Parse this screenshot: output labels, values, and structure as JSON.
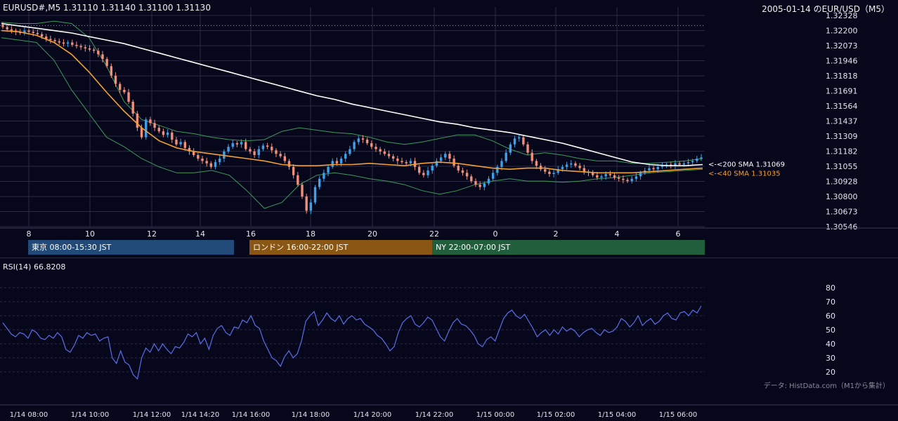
{
  "header": {
    "left_title": "EURUSD#,M5 1.31110 1.31140 1.31100 1.31130",
    "right_title": "2005-01-14 のEUR/USD（M5）"
  },
  "rsi_label": "RSI(14) 66.8208",
  "credit": "データ: HistData.com（M1から集計）",
  "sessions": [
    {
      "label": "東京 08:00-15:30 JST",
      "color": "#214a78"
    },
    {
      "label": "ロンドン 16:00-22:00 JST",
      "color": "#8a5614"
    },
    {
      "label": "NY 22:00-07:00 JST",
      "color": "#215e3c"
    }
  ],
  "colors": {
    "background": "#07071c",
    "grid": "#2a2a44",
    "bull": "#3fa0e8",
    "bear": "#f0907a",
    "sma200": "#ffffff",
    "sma40": "#f2a033",
    "bollinger": "#3c9a5a",
    "rsi": "#5a6ee8"
  },
  "chart_data": [
    {
      "type": "candlestick",
      "ylim": [
        1.30546,
        1.32328
      ],
      "y_ticks": [
        "1.32328",
        "1.32200",
        "1.32073",
        "1.31946",
        "1.31818",
        "1.31691",
        "1.31564",
        "1.31437",
        "1.31309",
        "1.31182",
        "1.31055",
        "1.30928",
        "1.30800",
        "1.30673",
        "1.30546"
      ],
      "x_ticks_hour": [
        "8",
        "10",
        "12",
        "14",
        "16",
        "18",
        "20",
        "22",
        "0",
        "2",
        "4",
        "6"
      ],
      "x_ticks_datetime": [
        "1/14 08:00",
        "1/14 10:00",
        "1/14 12:00",
        "1/14 14:20",
        "1/14 16:00",
        "1/14 18:00",
        "1/14 20:00",
        "1/14 22:00",
        "1/15 00:00",
        "1/15 02:00",
        "1/15 04:00",
        "1/15 06:00"
      ],
      "dotted_level": 1.32243,
      "sma_labels": [
        {
          "text": "<-<200 SMA 1.31069",
          "value": 1.31069,
          "color": "#ffffff"
        },
        {
          "text": "<-<40 SMA 1.31035",
          "value": 1.31035,
          "color": "#f2a033"
        }
      ],
      "close_series": [
        1.3223,
        1.3221,
        1.322,
        1.3219,
        1.3218,
        1.322,
        1.3219,
        1.3218,
        1.3217,
        1.3215,
        1.3213,
        1.3212,
        1.3211,
        1.321,
        1.3209,
        1.321,
        1.3208,
        1.3207,
        1.3206,
        1.3205,
        1.3204,
        1.3203,
        1.32,
        1.3196,
        1.319,
        1.3182,
        1.3175,
        1.317,
        1.3168,
        1.316,
        1.315,
        1.3138,
        1.313,
        1.3145,
        1.3142,
        1.3138,
        1.3135,
        1.3132,
        1.3134,
        1.3128,
        1.3124,
        1.3126,
        1.3121,
        1.3118,
        1.3115,
        1.3112,
        1.311,
        1.3108,
        1.3105,
        1.3109,
        1.3112,
        1.3118,
        1.3122,
        1.3125,
        1.3124,
        1.3126,
        1.312,
        1.3118,
        1.3115,
        1.312,
        1.3123,
        1.3122,
        1.3119,
        1.3116,
        1.3114,
        1.311,
        1.3105,
        1.3098,
        1.309,
        1.308,
        1.3068,
        1.3075,
        1.3088,
        1.3095,
        1.31,
        1.3105,
        1.311,
        1.3108,
        1.3112,
        1.3116,
        1.312,
        1.3126,
        1.3129,
        1.3128,
        1.3125,
        1.3122,
        1.312,
        1.3118,
        1.3116,
        1.3114,
        1.3112,
        1.311,
        1.3109,
        1.3108,
        1.311,
        1.3105,
        1.31,
        1.3098,
        1.3102,
        1.3106,
        1.311,
        1.3113,
        1.3116,
        1.3112,
        1.3106,
        1.3102,
        1.31,
        1.3097,
        1.3093,
        1.309,
        1.3088,
        1.3091,
        1.3095,
        1.31,
        1.3105,
        1.311,
        1.3117,
        1.3124,
        1.3129,
        1.313,
        1.3124,
        1.3117,
        1.311,
        1.3106,
        1.3103,
        1.3101,
        1.3099,
        1.31,
        1.3103,
        1.3105,
        1.3107,
        1.3108,
        1.3106,
        1.3104,
        1.3101,
        1.31,
        1.3098,
        1.3096,
        1.3097,
        1.3099,
        1.3098,
        1.3096,
        1.3095,
        1.3094,
        1.3093,
        1.3095,
        1.3097,
        1.31,
        1.3102,
        1.3104,
        1.3103,
        1.3105,
        1.3106,
        1.3107,
        1.3106,
        1.3108,
        1.3107,
        1.3108,
        1.3109,
        1.311,
        1.3112,
        1.3113
      ],
      "sma200_series": [
        1.3226,
        1.3224,
        1.3222,
        1.322,
        1.3218,
        1.3215,
        1.3212,
        1.3209,
        1.3205,
        1.3201,
        1.3197,
        1.3193,
        1.3189,
        1.3185,
        1.3181,
        1.3177,
        1.3173,
        1.3169,
        1.3165,
        1.3162,
        1.3158,
        1.3155,
        1.3152,
        1.3149,
        1.3146,
        1.3143,
        1.3141,
        1.3138,
        1.3136,
        1.3134,
        1.3131,
        1.3128,
        1.3125,
        1.3121,
        1.3117,
        1.3113,
        1.3109,
        1.3107,
        1.3106,
        1.3106,
        1.3107
      ],
      "sma40_series": [
        1.322,
        1.3219,
        1.3216,
        1.321,
        1.32,
        1.3185,
        1.3168,
        1.3152,
        1.3138,
        1.3127,
        1.3121,
        1.3118,
        1.3116,
        1.3114,
        1.3112,
        1.311,
        1.3107,
        1.3106,
        1.3106,
        1.3107,
        1.3107,
        1.3108,
        1.3107,
        1.3106,
        1.3108,
        1.3109,
        1.3108,
        1.3106,
        1.3104,
        1.3103,
        1.3104,
        1.3104,
        1.3102,
        1.3101,
        1.31,
        1.31,
        1.31,
        1.3101,
        1.3102,
        1.3103,
        1.3104
      ],
      "bollinger_upper": [
        1.3227,
        1.3226,
        1.3226,
        1.3228,
        1.3226,
        1.3214,
        1.319,
        1.316,
        1.3145,
        1.314,
        1.3135,
        1.3133,
        1.313,
        1.3128,
        1.3127,
        1.3128,
        1.3135,
        1.3138,
        1.3136,
        1.3134,
        1.3133,
        1.313,
        1.3126,
        1.3124,
        1.3126,
        1.3129,
        1.3132,
        1.3132,
        1.3127,
        1.312,
        1.3115,
        1.3117,
        1.3115,
        1.3112,
        1.311,
        1.311,
        1.3108,
        1.3108,
        1.3109,
        1.311,
        1.3112
      ],
      "bollinger_lower": [
        1.3214,
        1.3212,
        1.321,
        1.3195,
        1.317,
        1.315,
        1.313,
        1.3122,
        1.3112,
        1.3105,
        1.31,
        1.31,
        1.3102,
        1.3098,
        1.3085,
        1.307,
        1.3075,
        1.309,
        1.3098,
        1.31,
        1.3098,
        1.3095,
        1.3093,
        1.309,
        1.3085,
        1.3082,
        1.3085,
        1.309,
        1.3093,
        1.3095,
        1.3093,
        1.3093,
        1.3092,
        1.3093,
        1.3095,
        1.3096,
        1.3098,
        1.31,
        1.3101,
        1.3102,
        1.3103
      ]
    },
    {
      "type": "line",
      "title": "RSI(14) 66.8208",
      "ylim": [
        15,
        85
      ],
      "y_ticks": [
        "80",
        "70",
        "60",
        "50",
        "40",
        "30",
        "20"
      ],
      "values": [
        55,
        51,
        47,
        45,
        48,
        47,
        44,
        50,
        48,
        44,
        43,
        46,
        44,
        48,
        45,
        36,
        34,
        39,
        46,
        44,
        48,
        46,
        47,
        42,
        44,
        45,
        30,
        26,
        35,
        27,
        25,
        18,
        15,
        30,
        37,
        34,
        40,
        35,
        40,
        36,
        33,
        38,
        37,
        41,
        47,
        45,
        48,
        40,
        44,
        36,
        46,
        51,
        53,
        48,
        46,
        52,
        51,
        57,
        55,
        60,
        53,
        51,
        42,
        36,
        30,
        28,
        24,
        31,
        35,
        30,
        33,
        42,
        56,
        60,
        63,
        53,
        57,
        62,
        58,
        56,
        60,
        54,
        58,
        60,
        57,
        58,
        54,
        52,
        50,
        46,
        44,
        40,
        35,
        38,
        48,
        55,
        58,
        60,
        54,
        52,
        55,
        59,
        57,
        51,
        45,
        42,
        49,
        55,
        58,
        54,
        53,
        50,
        46,
        40,
        38,
        43,
        45,
        42,
        50,
        58,
        62,
        64,
        60,
        58,
        61,
        56,
        51,
        45,
        48,
        50,
        46,
        50,
        47,
        52,
        49,
        51,
        49,
        45,
        48,
        50,
        51,
        48,
        46,
        50,
        48,
        49,
        52,
        58,
        56,
        52,
        55,
        60,
        53,
        56,
        58,
        54,
        56,
        60,
        62,
        58,
        57,
        62,
        63,
        60,
        64,
        62,
        67
      ],
      "grid": true
    }
  ]
}
